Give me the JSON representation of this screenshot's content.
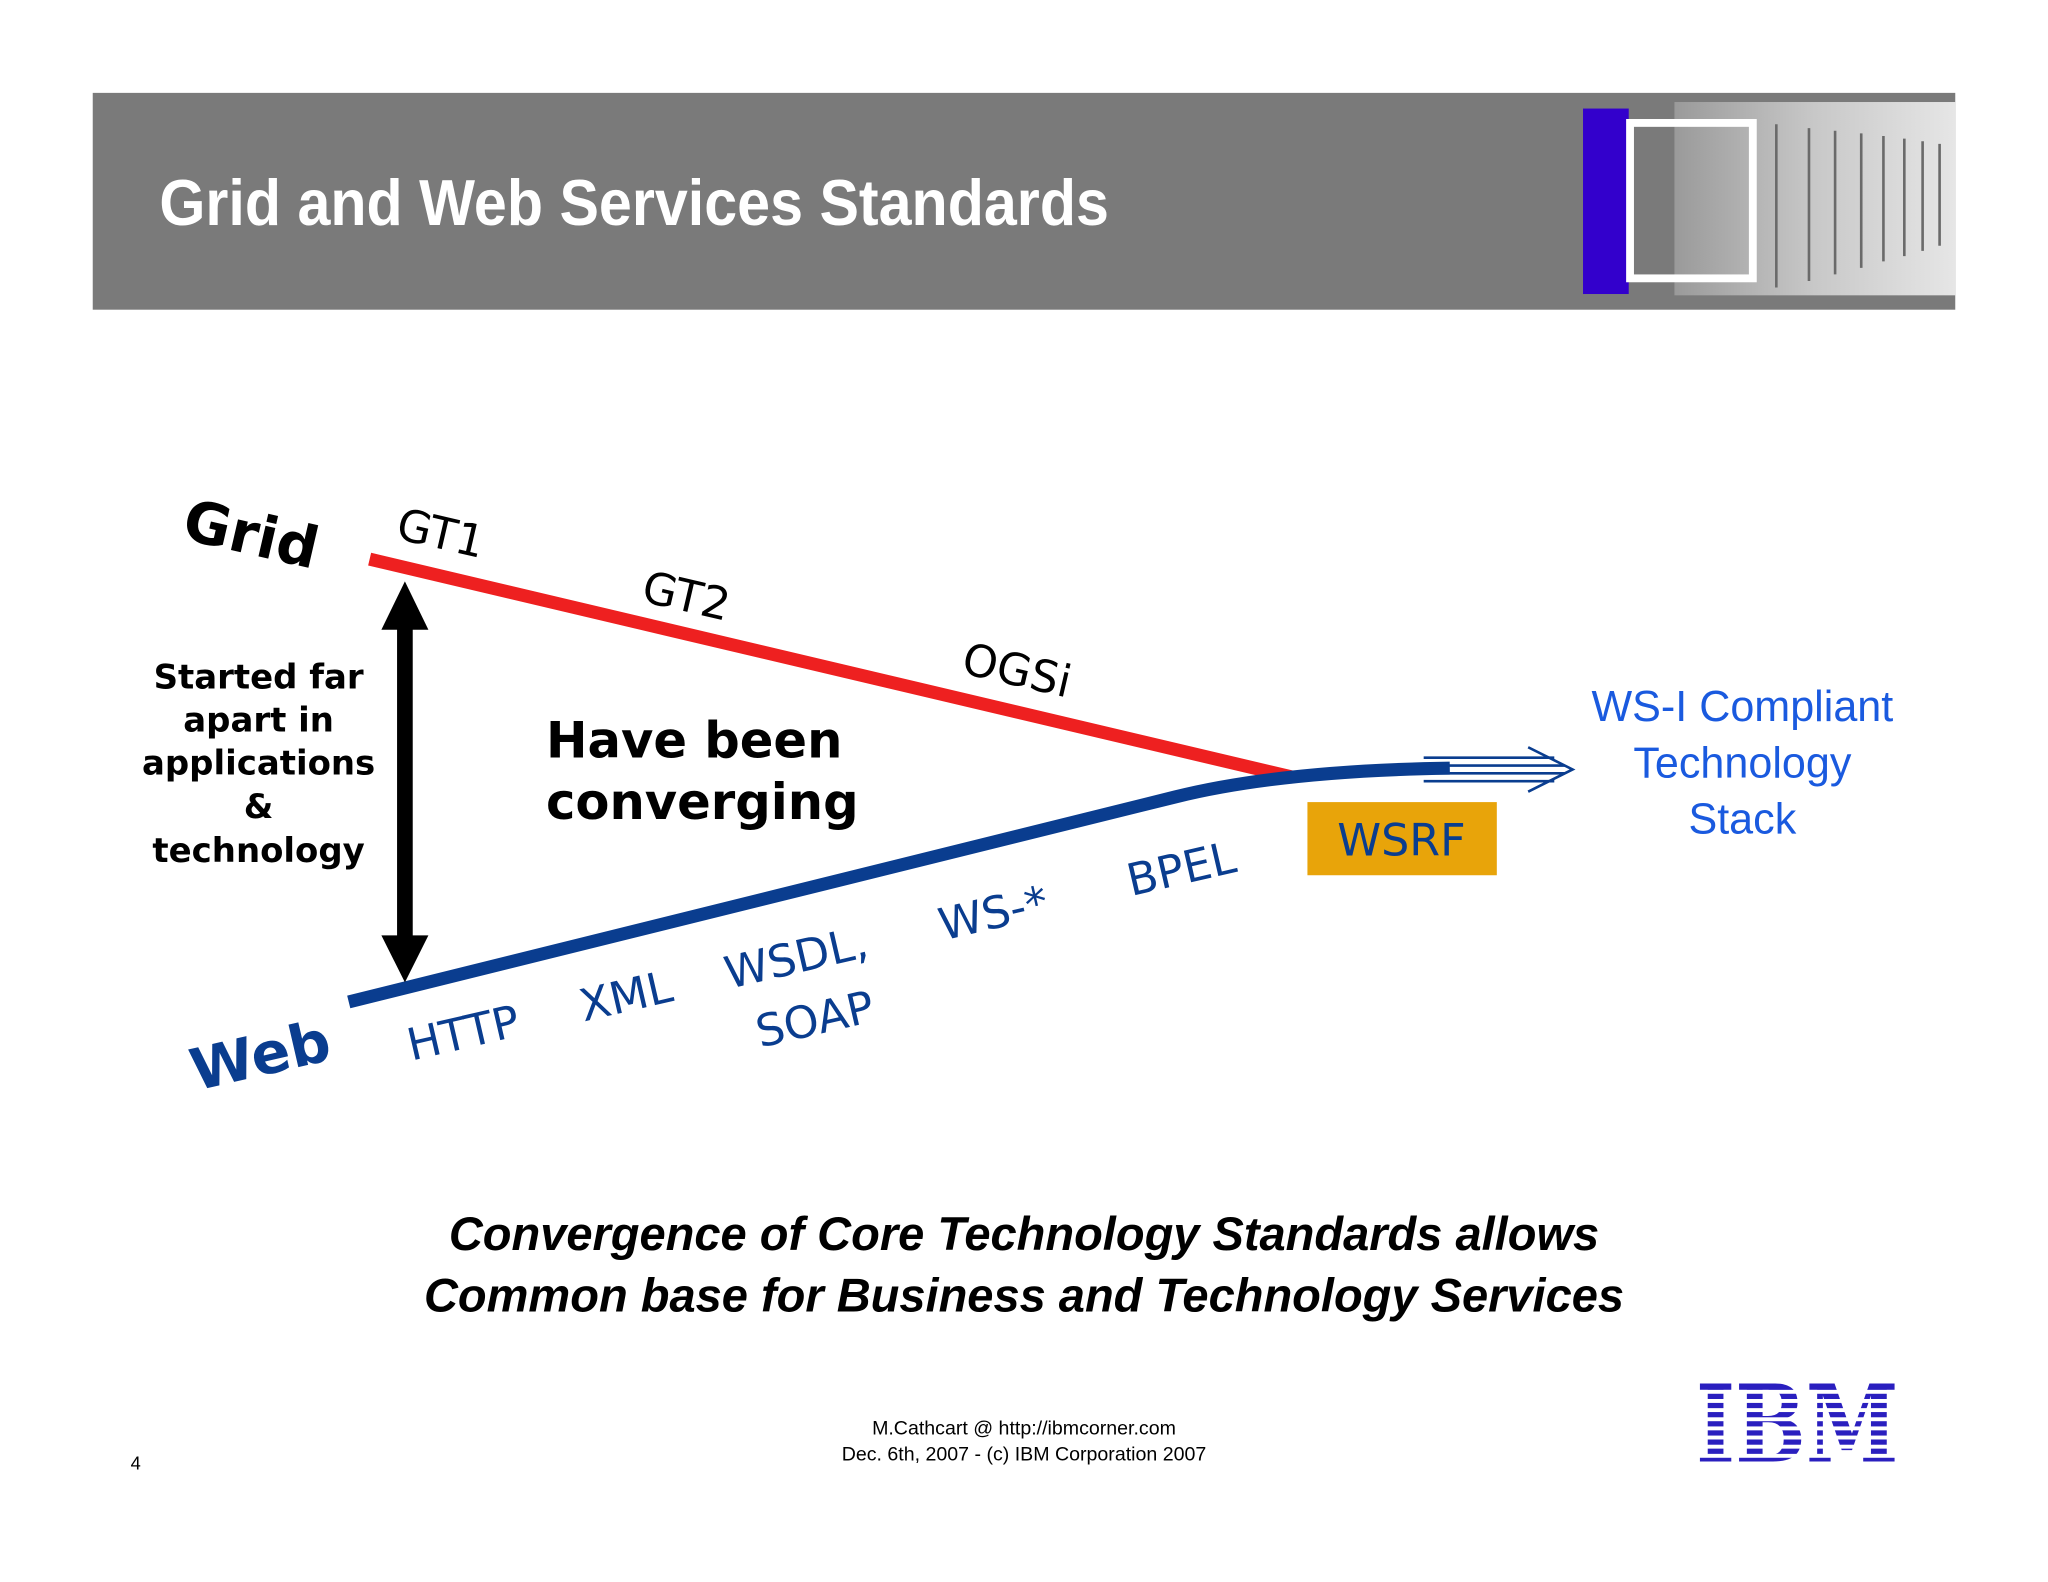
{
  "header": {
    "title": "Grid and Web Services Standards"
  },
  "diagram": {
    "grid_label": "Grid",
    "web_label": "Web",
    "grid_milestones": [
      "GT1",
      "GT2",
      "OGSi"
    ],
    "web_milestones": [
      "HTTP",
      "XML",
      "WSDL,",
      "SOAP",
      "WS-*",
      "BPEL"
    ],
    "side_note": [
      "Started far",
      "apart in",
      "applications",
      "&",
      "technology"
    ],
    "center_note": [
      "Have been",
      "converging"
    ],
    "merge_label": "WSRF",
    "target": [
      "WS-I Compliant",
      "Technology",
      "Stack"
    ]
  },
  "caption": [
    "Convergence of Core Technology Standards allows",
    "Common base for Business and Technology Services"
  ],
  "footer": {
    "credit": [
      "M.Cathcart @ http://ibmcorner.com",
      "Dec. 6th, 2007 - (c) IBM Corporation 2007"
    ],
    "page_number": "4",
    "logo": "IBM"
  }
}
